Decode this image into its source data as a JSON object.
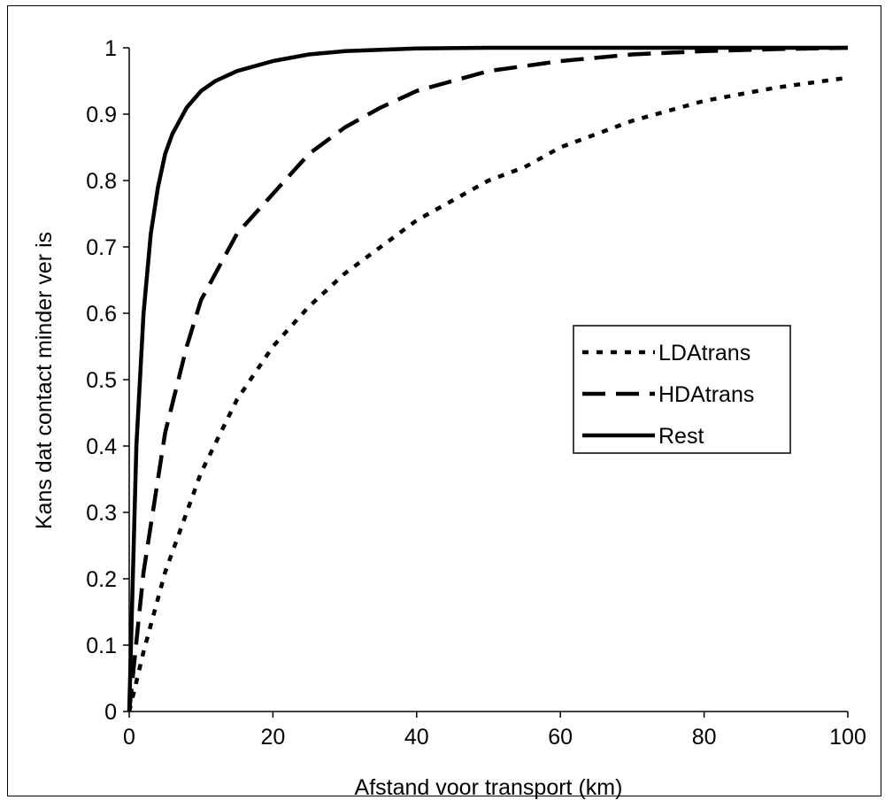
{
  "chart_data": {
    "type": "line",
    "title": "",
    "xlabel": "Afstand voor transport (km)",
    "ylabel": "Kans dat contact minder ver is",
    "xlim": [
      0,
      100
    ],
    "ylim": [
      0,
      1
    ],
    "xticks": [
      "0",
      "20",
      "40",
      "60",
      "80",
      "100"
    ],
    "yticks": [
      "0",
      "0.1",
      "0.2",
      "0.3",
      "0.4",
      "0.5",
      "0.6",
      "0.7",
      "0.8",
      "0.9",
      "1"
    ],
    "grid": false,
    "legend_position": "right-middle",
    "series": [
      {
        "name": "LDAtrans",
        "style": "dotted",
        "color": "#000000",
        "x": [
          0,
          2,
          5,
          10,
          15,
          20,
          25,
          30,
          35,
          40,
          45,
          50,
          55,
          60,
          70,
          80,
          90,
          100
        ],
        "y": [
          0,
          0.09,
          0.21,
          0.36,
          0.47,
          0.55,
          0.61,
          0.66,
          0.7,
          0.74,
          0.77,
          0.8,
          0.82,
          0.85,
          0.89,
          0.92,
          0.94,
          0.955
        ]
      },
      {
        "name": "HDAtrans",
        "style": "dashed",
        "color": "#000000",
        "x": [
          0,
          2,
          5,
          8,
          10,
          15,
          20,
          25,
          30,
          35,
          40,
          45,
          50,
          60,
          70,
          80,
          90,
          100
        ],
        "y": [
          0,
          0.21,
          0.42,
          0.55,
          0.62,
          0.72,
          0.78,
          0.84,
          0.88,
          0.91,
          0.935,
          0.95,
          0.965,
          0.98,
          0.99,
          0.995,
          0.998,
          1.0
        ]
      },
      {
        "name": "Rest",
        "style": "solid",
        "color": "#000000",
        "x": [
          0,
          1,
          2,
          3,
          4,
          5,
          6,
          8,
          10,
          12,
          15,
          20,
          25,
          30,
          40,
          50,
          100
        ],
        "y": [
          0,
          0.4,
          0.6,
          0.72,
          0.79,
          0.84,
          0.87,
          0.91,
          0.935,
          0.95,
          0.965,
          0.98,
          0.99,
          0.995,
          0.999,
          1.0,
          1.0
        ]
      }
    ]
  }
}
